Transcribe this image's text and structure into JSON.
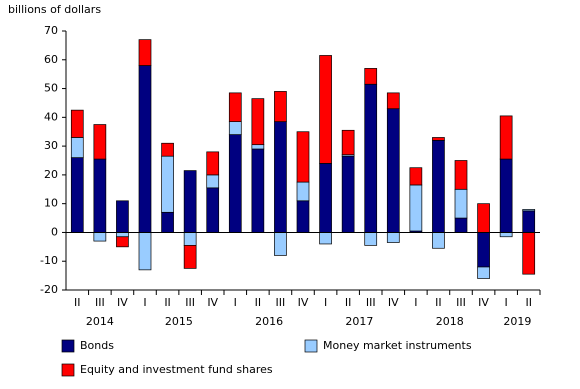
{
  "chart_data": {
    "type": "stacked-bar",
    "y_label": "billions of dollars",
    "categories": [
      "II",
      "III",
      "IV",
      "I",
      "II",
      "III",
      "IV",
      "I",
      "II",
      "III",
      "IV",
      "I",
      "II",
      "III",
      "IV",
      "I",
      "II",
      "III",
      "IV",
      "I",
      "II"
    ],
    "years": [
      "2014",
      null,
      null,
      "2015",
      null,
      null,
      null,
      "2016",
      null,
      null,
      null,
      "2017",
      null,
      null,
      null,
      "2018",
      null,
      null,
      null,
      "2019",
      null
    ],
    "series": [
      {
        "name": "Bonds",
        "color": "#000080",
        "values": [
          26,
          25.5,
          11,
          58,
          7,
          21.5,
          15.5,
          34,
          29,
          38.5,
          11,
          24,
          26.5,
          51.5,
          43,
          0.5,
          32,
          5,
          -12,
          25.5,
          7.5
        ]
      },
      {
        "name": "Money market instruments",
        "color": "#99ccff",
        "values": [
          7,
          -3,
          -1.5,
          -13,
          19.5,
          -4.5,
          4.5,
          4.5,
          1.5,
          -8,
          6.5,
          -4,
          0.5,
          -4.5,
          -3.5,
          16,
          -5.5,
          10,
          -4,
          -1.5,
          0.5
        ]
      },
      {
        "name": "Equity and investment fund shares",
        "color": "#ff0000",
        "values": [
          9.5,
          12,
          -3.5,
          9,
          4.5,
          -8,
          8,
          10,
          16,
          10.5,
          17.5,
          37.5,
          8.5,
          5.5,
          5.5,
          6,
          1,
          10,
          10,
          15,
          -14.5
        ]
      }
    ],
    "ylim": [
      -20,
      70
    ],
    "yticks": [
      -20,
      -10,
      0,
      10,
      20,
      30,
      40,
      50,
      60,
      70
    ]
  }
}
